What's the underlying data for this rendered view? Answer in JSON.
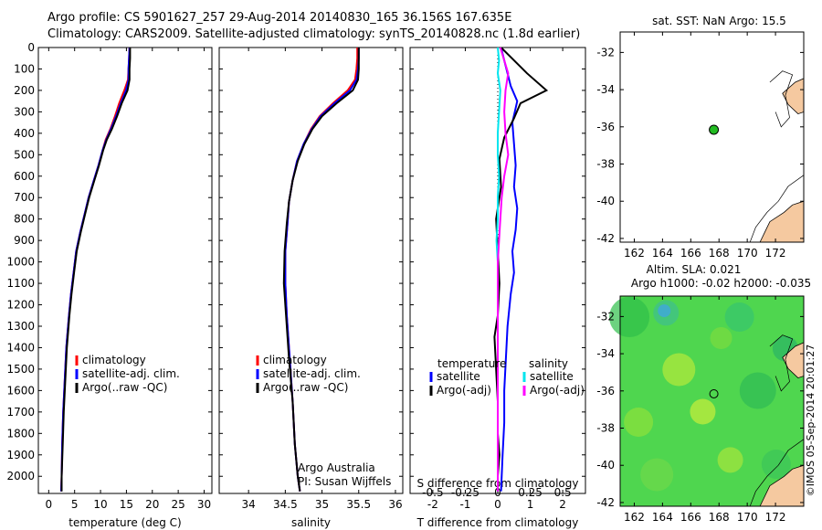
{
  "header": {
    "line1": "Argo profile: CS 5901627_257 29-Aug-2014 20140830_165 36.156S 167.635E",
    "line2": "Climatology: CARS2009. Satellite-adjusted climatology: synTS_20140828.nc (1.8d earlier)"
  },
  "colors": {
    "climatology": "#ff0000",
    "satellite": "#0000ff",
    "argo": "#000000",
    "sat_salinity": "#00e5ee",
    "argo_adj_salinity": "#ff00ff",
    "land": "#f5c9a0",
    "sst_point": "#22bb22"
  },
  "depth_axis": {
    "ticks": [
      "0",
      "100",
      "200",
      "300",
      "400",
      "500",
      "600",
      "700",
      "800",
      "900",
      "1000",
      "1100",
      "1200",
      "1300",
      "1400",
      "1500",
      "1600",
      "1700",
      "1800",
      "1900",
      "2000"
    ],
    "range": [
      0,
      2080
    ]
  },
  "chart_data": [
    {
      "type": "line",
      "xlabel": "temperature (deg C)",
      "xticks": [
        "0",
        "5",
        "10",
        "15",
        "20",
        "25",
        "30"
      ],
      "xlim": [
        -2,
        31.5
      ],
      "legend": [
        "climatology",
        "satellite-adj. clim.",
        "Argo(..raw -QC)"
      ],
      "series": [
        {
          "name": "climatology",
          "x": [
            15.6,
            15.5,
            15.4,
            15.3,
            14.6,
            13.6,
            12.8,
            11.9,
            11.0,
            10.4,
            9.6,
            8.7,
            7.7,
            6.9,
            6.1,
            5.3,
            4.8,
            4.3,
            3.9,
            3.4,
            3.1,
            2.8,
            2.6,
            2.5,
            2.4
          ],
          "y": [
            0,
            50,
            100,
            150,
            200,
            260,
            320,
            380,
            430,
            480,
            550,
            620,
            700,
            780,
            860,
            950,
            1050,
            1150,
            1250,
            1400,
            1550,
            1700,
            1850,
            2000,
            2070
          ]
        },
        {
          "name": "satellite-adj. clim.",
          "x": [
            15.6,
            15.5,
            15.4,
            15.4,
            14.9,
            13.9,
            13.0,
            12.0,
            11.1,
            10.4,
            9.6,
            8.7,
            7.7,
            6.9,
            6.1,
            5.3,
            4.8,
            4.3,
            3.9,
            3.4,
            3.1,
            2.8,
            2.6,
            2.5,
            2.4
          ],
          "y": [
            0,
            50,
            100,
            150,
            200,
            260,
            320,
            380,
            430,
            480,
            550,
            620,
            700,
            780,
            860,
            950,
            1050,
            1150,
            1250,
            1400,
            1550,
            1700,
            1850,
            2000,
            2070
          ]
        },
        {
          "name": "Argo(..raw -QC)",
          "x": [
            15.7,
            15.7,
            15.6,
            15.6,
            15.2,
            14.1,
            13.2,
            12.2,
            11.2,
            10.5,
            9.7,
            8.8,
            7.8,
            7.0,
            6.2,
            5.4,
            4.9,
            4.4,
            4.0,
            3.5,
            3.2,
            2.9,
            2.7,
            2.5,
            2.5
          ],
          "y": [
            0,
            50,
            100,
            150,
            200,
            260,
            320,
            380,
            430,
            480,
            550,
            620,
            700,
            780,
            860,
            950,
            1050,
            1150,
            1250,
            1400,
            1550,
            1700,
            1850,
            2000,
            2070
          ]
        }
      ]
    },
    {
      "type": "line",
      "xlabel": "salinity",
      "xticks": [
        "34",
        "34.5",
        "35",
        "35.5",
        "36"
      ],
      "xlim": [
        33.6,
        36.1
      ],
      "legend": [
        "climatology",
        "satellite-adj. clim.",
        "Argo(..raw -QC)"
      ],
      "annotation": [
        "Argo Australia",
        "PI: Susan Wijffels"
      ],
      "series": [
        {
          "name": "climatology",
          "x": [
            35.48,
            35.48,
            35.47,
            35.45,
            35.35,
            35.15,
            34.97,
            34.85,
            34.75,
            34.66,
            34.6,
            34.55,
            34.53,
            34.5,
            34.5,
            34.52,
            34.56,
            34.6,
            34.63,
            34.67,
            34.7
          ],
          "y": [
            0,
            50,
            100,
            150,
            200,
            260,
            320,
            380,
            450,
            530,
            620,
            720,
            820,
            950,
            1100,
            1250,
            1450,
            1650,
            1850,
            2000,
            2070
          ]
        },
        {
          "name": "satellite-adj. clim.",
          "x": [
            35.5,
            35.5,
            35.49,
            35.47,
            35.38,
            35.17,
            34.98,
            34.86,
            34.75,
            34.66,
            34.6,
            34.55,
            34.53,
            34.5,
            34.5,
            34.52,
            34.56,
            34.6,
            34.63,
            34.67,
            34.7
          ],
          "y": [
            0,
            50,
            100,
            150,
            200,
            260,
            320,
            380,
            450,
            530,
            620,
            720,
            820,
            950,
            1100,
            1250,
            1450,
            1650,
            1850,
            2000,
            2070
          ]
        },
        {
          "name": "Argo(..raw -QC)",
          "x": [
            35.5,
            35.5,
            35.5,
            35.49,
            35.42,
            35.2,
            35.0,
            34.87,
            34.76,
            34.67,
            34.6,
            34.55,
            34.52,
            34.49,
            34.48,
            34.51,
            34.55,
            34.6,
            34.63,
            34.67,
            34.7
          ],
          "y": [
            0,
            50,
            100,
            150,
            200,
            260,
            320,
            380,
            450,
            530,
            620,
            720,
            820,
            950,
            1100,
            1250,
            1450,
            1650,
            1850,
            2000,
            2070
          ]
        }
      ]
    },
    {
      "type": "line",
      "xlabel": "T difference from climatology",
      "xticks": [
        "-2",
        "-1",
        "0",
        "1",
        "2"
      ],
      "xlim": [
        -2.7,
        2.7
      ],
      "top_label": "S difference from climatology",
      "top_ticks": [
        "-0.5",
        "-0.25",
        "0",
        "0.25",
        "0.5"
      ],
      "legend_headers": [
        "temperature",
        "salinity"
      ],
      "legend": [
        "satellite",
        "Argo(-adj)",
        "satellite",
        "Argo(-adj)"
      ],
      "series": [
        {
          "name": "temperature satellite",
          "x": [
            0.1,
            0.2,
            0.3,
            0.4,
            0.6,
            0.45,
            0.5,
            0.55,
            0.5,
            0.6,
            0.55,
            0.45,
            0.5,
            0.4,
            0.3,
            0.25,
            0.2,
            0.2,
            0.15,
            0.1
          ],
          "y": [
            0,
            60,
            120,
            180,
            250,
            350,
            450,
            550,
            650,
            750,
            850,
            950,
            1050,
            1150,
            1300,
            1450,
            1600,
            1750,
            1900,
            2070
          ]
        },
        {
          "name": "temperature Argo(-adj)",
          "x": [
            0.1,
            0.5,
            0.9,
            1.5,
            0.7,
            0.5,
            0.2,
            0.05,
            0.1,
            -0.05,
            0.0,
            0.05,
            0.0,
            -0.1,
            -0.05,
            0.0,
            0.0,
            0.05,
            0.0,
            0.0
          ],
          "y": [
            0,
            60,
            120,
            200,
            260,
            330,
            420,
            520,
            650,
            800,
            950,
            1100,
            1250,
            1350,
            1500,
            1650,
            1800,
            1900,
            2000,
            2070
          ]
        },
        {
          "name": "salinity satellite",
          "x": [
            0.0,
            0.01,
            0.0,
            0.02,
            0.01,
            0.0,
            0.0,
            0.01,
            0.0,
            0.0,
            -0.01,
            0.0,
            0.0,
            0.0,
            0.0,
            0.0,
            0.0,
            0.0,
            0.0,
            0.0
          ],
          "y": [
            0,
            60,
            120,
            200,
            300,
            400,
            500,
            600,
            700,
            800,
            900,
            1000,
            1100,
            1200,
            1350,
            1500,
            1650,
            1800,
            1950,
            2070
          ]
        },
        {
          "name": "salinity Argo(-adj)",
          "x": [
            0.02,
            0.05,
            0.08,
            0.06,
            0.05,
            0.06,
            0.08,
            0.05,
            0.03,
            0.02,
            0.01,
            0.0,
            0.0,
            0.0,
            0.0,
            0.0,
            0.0,
            0.0,
            0.0,
            0.0
          ],
          "y": [
            0,
            60,
            120,
            200,
            300,
            400,
            500,
            600,
            700,
            800,
            900,
            1000,
            1100,
            1200,
            1350,
            1500,
            1650,
            1800,
            1950,
            2070
          ]
        }
      ]
    },
    {
      "type": "scatter",
      "title": "sat. SST: NaN Argo: 15.5",
      "xticks": [
        "162",
        "164",
        "166",
        "168",
        "170",
        "172"
      ],
      "yticks": [
        "-32",
        "-34",
        "-36",
        "-38",
        "-40",
        "-42"
      ],
      "xlim": [
        161,
        174
      ],
      "ylim": [
        -42.2,
        -30.9
      ],
      "points": [
        {
          "x": 167.635,
          "y": -36.156
        }
      ]
    },
    {
      "type": "heatmap",
      "title": [
        "Altim. SLA: 0.021",
        "Argo h1000: -0.02 h2000: -0.035"
      ],
      "xticks": [
        "162",
        "164",
        "166",
        "168",
        "170",
        "172"
      ],
      "yticks": [
        "-32",
        "-34",
        "-36",
        "-38",
        "-40",
        "-42"
      ],
      "xlim": [
        161,
        174
      ],
      "ylim": [
        -42.2,
        -30.9
      ],
      "points": [
        {
          "x": 167.635,
          "y": -36.156
        }
      ]
    }
  ],
  "side_label": "©IMOS 05-Sep-2014 20:01:27"
}
